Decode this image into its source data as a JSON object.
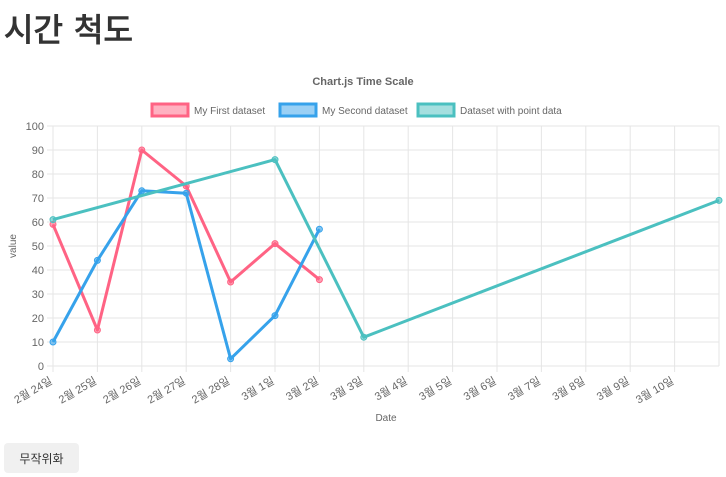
{
  "page": {
    "title": "시간 척도",
    "randomize_label": "무작위화"
  },
  "chart_data": {
    "type": "line",
    "title": "Chart.js Time Scale",
    "xlabel": "Date",
    "ylabel": "value",
    "ylim": [
      0,
      100
    ],
    "y_ticks": [
      0,
      10,
      20,
      30,
      40,
      50,
      60,
      70,
      80,
      90,
      100
    ],
    "x_range_days": [
      "2월 24일",
      "3월 11일"
    ],
    "x_ticks": [
      "2월 24일",
      "2월 25일",
      "2월 26일",
      "2월 27일",
      "2월 28일",
      "3월 1일",
      "3월 2일",
      "3월 3일",
      "3월 4일",
      "3월 5일",
      "3월 6일",
      "3월 7일",
      "3월 8일",
      "3월 9일",
      "3월 10일"
    ],
    "grid": true,
    "legend_position": "top",
    "series": [
      {
        "name": "My First dataset",
        "color": "#ff6384",
        "points": [
          {
            "x": "2월 24일",
            "y": 59
          },
          {
            "x": "2월 25일",
            "y": 15
          },
          {
            "x": "2월 26일",
            "y": 90
          },
          {
            "x": "2월 27일",
            "y": 75
          },
          {
            "x": "2월 28일",
            "y": 35
          },
          {
            "x": "3월 1일",
            "y": 51
          },
          {
            "x": "3월 2일",
            "y": 36
          }
        ]
      },
      {
        "name": "My Second dataset",
        "color": "#36a2eb",
        "points": [
          {
            "x": "2월 24일",
            "y": 10
          },
          {
            "x": "2월 25일",
            "y": 44
          },
          {
            "x": "2월 26일",
            "y": 73
          },
          {
            "x": "2월 27일",
            "y": 72
          },
          {
            "x": "2월 28일",
            "y": 3
          },
          {
            "x": "3월 1일",
            "y": 21
          },
          {
            "x": "3월 2일",
            "y": 57
          }
        ]
      },
      {
        "name": "Dataset with point data",
        "color": "#4bc0c0",
        "points": [
          {
            "x": "2월 24일",
            "y": 61
          },
          {
            "x": "3월 1일",
            "y": 86
          },
          {
            "x": "3월 3일",
            "y": 12
          },
          {
            "x": "3월 11일",
            "y": 69
          }
        ]
      }
    ]
  }
}
